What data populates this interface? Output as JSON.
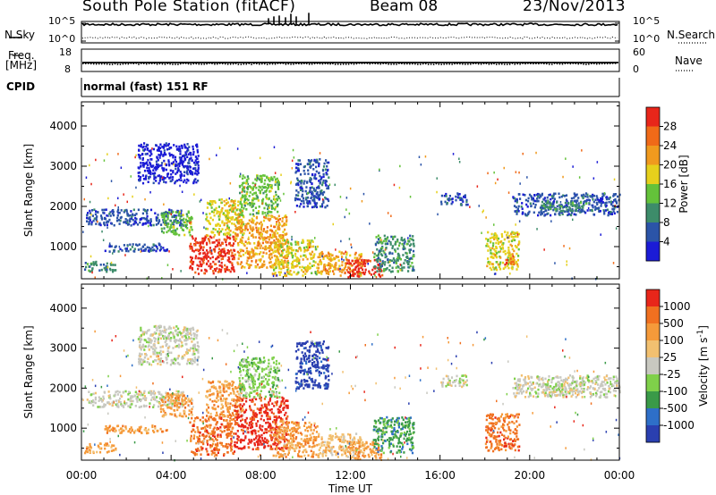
{
  "header": {
    "station": "South Pole Station (fitACF)",
    "beam": "Beam 08",
    "date": "23/Nov/2013"
  },
  "panel_labels": {
    "nsky": "N.Sky",
    "nsearch": "N.Search",
    "freq_line1": "Freq.",
    "freq_line2": "[MHz]",
    "nave": "Nave",
    "cpid": "CPID",
    "cpid_value": "normal (fast) 151 RF",
    "noise_ticks_left": [
      "10^5",
      "10^0"
    ],
    "noise_ticks_right": [
      "10^5",
      "10^0"
    ],
    "freq_ticks_left": [
      "18",
      "8"
    ],
    "freq_ticks_right": [
      "60",
      "0"
    ]
  },
  "chart_data": [
    {
      "type": "line",
      "name": "noise",
      "series": [
        {
          "name": "N.Sky",
          "style": "solid",
          "values_log10": 4.3
        },
        {
          "name": "N.Search",
          "style": "dotted",
          "values_log10": 1.2
        }
      ],
      "ylim_log10": [
        0,
        5
      ]
    },
    {
      "type": "line",
      "name": "frequency_nave",
      "series": [
        {
          "name": "Freq.",
          "style": "solid",
          "value": 12.0
        },
        {
          "name": "Nave",
          "style": "dotted",
          "value": 30
        }
      ],
      "freq_range_MHz": [
        8,
        18
      ],
      "nave_range": [
        0,
        60
      ]
    },
    {
      "type": "heatmap",
      "name": "power",
      "ylabel": "Slant Range [km]",
      "ylim": [
        200,
        4600
      ],
      "yticks": [
        1000,
        2000,
        3000,
        4000
      ],
      "xlim_hours": [
        0,
        24
      ],
      "xtick_labels": [
        "00:00",
        "04:00",
        "08:00",
        "12:00",
        "16:00",
        "20:00",
        "00:00"
      ],
      "colorbar": {
        "label": "Power [dB]",
        "tick_labels": [
          "4",
          "8",
          "12",
          "16",
          "20",
          "24",
          "28"
        ],
        "colors": [
          "#1b1bd6",
          "#2b54a8",
          "#3d8c6a",
          "#64c23a",
          "#e6d01c",
          "#f09a1e",
          "#f06a18",
          "#e8261a"
        ]
      },
      "regions": [
        {
          "t": [
            0.2,
            4.5
          ],
          "r": [
            1550,
            1950
          ],
          "v": 1
        },
        {
          "t": [
            0.1,
            1.5
          ],
          "r": [
            400,
            650
          ],
          "v": 2
        },
        {
          "t": [
            1.0,
            3.8
          ],
          "r": [
            900,
            1100
          ],
          "v": 1
        },
        {
          "t": [
            2.5,
            5.2
          ],
          "r": [
            2600,
            3600
          ],
          "v": 0
        },
        {
          "t": [
            3.5,
            4.9
          ],
          "r": [
            1300,
            1900
          ],
          "v": 3
        },
        {
          "t": [
            4.8,
            6.8
          ],
          "r": [
            350,
            1300
          ],
          "v": 7
        },
        {
          "t": [
            5.5,
            7.2
          ],
          "r": [
            1300,
            2200
          ],
          "v": 4
        },
        {
          "t": [
            6.8,
            9.2
          ],
          "r": [
            500,
            1800
          ],
          "v": 5
        },
        {
          "t": [
            7.0,
            8.8
          ],
          "r": [
            1800,
            2800
          ],
          "v": 3
        },
        {
          "t": [
            8.5,
            10.5
          ],
          "r": [
            300,
            1200
          ],
          "v": 4
        },
        {
          "t": [
            9.5,
            11.0
          ],
          "r": [
            2000,
            3200
          ],
          "v": 1
        },
        {
          "t": [
            10.5,
            12.5
          ],
          "r": [
            300,
            900
          ],
          "v": 5
        },
        {
          "t": [
            11.8,
            13.4
          ],
          "r": [
            250,
            700
          ],
          "v": 7
        },
        {
          "t": [
            13.0,
            14.8
          ],
          "r": [
            400,
            1300
          ],
          "v": 2
        },
        {
          "t": [
            16.0,
            17.2
          ],
          "r": [
            2050,
            2350
          ],
          "v": 1
        },
        {
          "t": [
            18.0,
            19.5
          ],
          "r": [
            450,
            1400
          ],
          "v": 4
        },
        {
          "t": [
            18.8,
            19.3
          ],
          "r": [
            550,
            750
          ],
          "v": 6
        },
        {
          "t": [
            19.2,
            24.0
          ],
          "r": [
            1800,
            2350
          ],
          "v": 1
        },
        {
          "t": [
            20.5,
            22.5
          ],
          "r": [
            1900,
            2150
          ],
          "v": 2
        }
      ]
    },
    {
      "type": "heatmap",
      "name": "velocity",
      "ylabel": "Slant Range [km]",
      "ylim": [
        200,
        4600
      ],
      "yticks": [
        1000,
        2000,
        3000,
        4000
      ],
      "xlim_hours": [
        0,
        24
      ],
      "xtick_labels": [
        "00:00",
        "04:00",
        "08:00",
        "12:00",
        "16:00",
        "20:00",
        "00:00"
      ],
      "xlabel": "Time UT",
      "colorbar": {
        "label": "Velocity [m s",
        "label_sup": "-1",
        "label_end": "]",
        "tick_labels": [
          "1000",
          "500",
          "100",
          "25",
          "-25",
          "-100",
          "-500",
          "-1000"
        ],
        "colors": [
          "#2a3fb0",
          "#2e6fc8",
          "#3a9a48",
          "#7fd04a",
          "#c8c8c0",
          "#f2c070",
          "#f59a3a",
          "#f07020",
          "#e8261a"
        ]
      },
      "regions": [
        {
          "t": [
            0.2,
            4.5
          ],
          "r": [
            1550,
            1950
          ],
          "v": 4
        },
        {
          "t": [
            0.1,
            1.5
          ],
          "r": [
            400,
            650
          ],
          "v": 6
        },
        {
          "t": [
            1.0,
            3.8
          ],
          "r": [
            900,
            1100
          ],
          "v": 6
        },
        {
          "t": [
            2.5,
            5.2
          ],
          "r": [
            2600,
            3600
          ],
          "v": 4
        },
        {
          "t": [
            3.5,
            4.9
          ],
          "r": [
            1300,
            1900
          ],
          "v": 6
        },
        {
          "t": [
            4.8,
            6.8
          ],
          "r": [
            350,
            1300
          ],
          "v": 7
        },
        {
          "t": [
            5.5,
            7.2
          ],
          "r": [
            1300,
            2200
          ],
          "v": 6
        },
        {
          "t": [
            6.8,
            9.2
          ],
          "r": [
            500,
            1800
          ],
          "v": 8
        },
        {
          "t": [
            7.0,
            8.8
          ],
          "r": [
            1800,
            2800
          ],
          "v": 3
        },
        {
          "t": [
            8.5,
            10.5
          ],
          "r": [
            300,
            1200
          ],
          "v": 6
        },
        {
          "t": [
            9.5,
            11.0
          ],
          "r": [
            2000,
            3200
          ],
          "v": 0
        },
        {
          "t": [
            10.5,
            12.5
          ],
          "r": [
            300,
            900
          ],
          "v": 5
        },
        {
          "t": [
            11.8,
            13.4
          ],
          "r": [
            250,
            700
          ],
          "v": 6
        },
        {
          "t": [
            13.0,
            14.8
          ],
          "r": [
            400,
            1300
          ],
          "v": 2
        },
        {
          "t": [
            16.0,
            17.2
          ],
          "r": [
            2050,
            2350
          ],
          "v": 4
        },
        {
          "t": [
            18.0,
            19.5
          ],
          "r": [
            450,
            1400
          ],
          "v": 7
        },
        {
          "t": [
            18.8,
            19.3
          ],
          "r": [
            550,
            750
          ],
          "v": 8
        },
        {
          "t": [
            19.2,
            24.0
          ],
          "r": [
            1800,
            2350
          ],
          "v": 4
        },
        {
          "t": [
            20.5,
            22.5
          ],
          "r": [
            1900,
            2150
          ],
          "v": 4
        }
      ]
    }
  ]
}
